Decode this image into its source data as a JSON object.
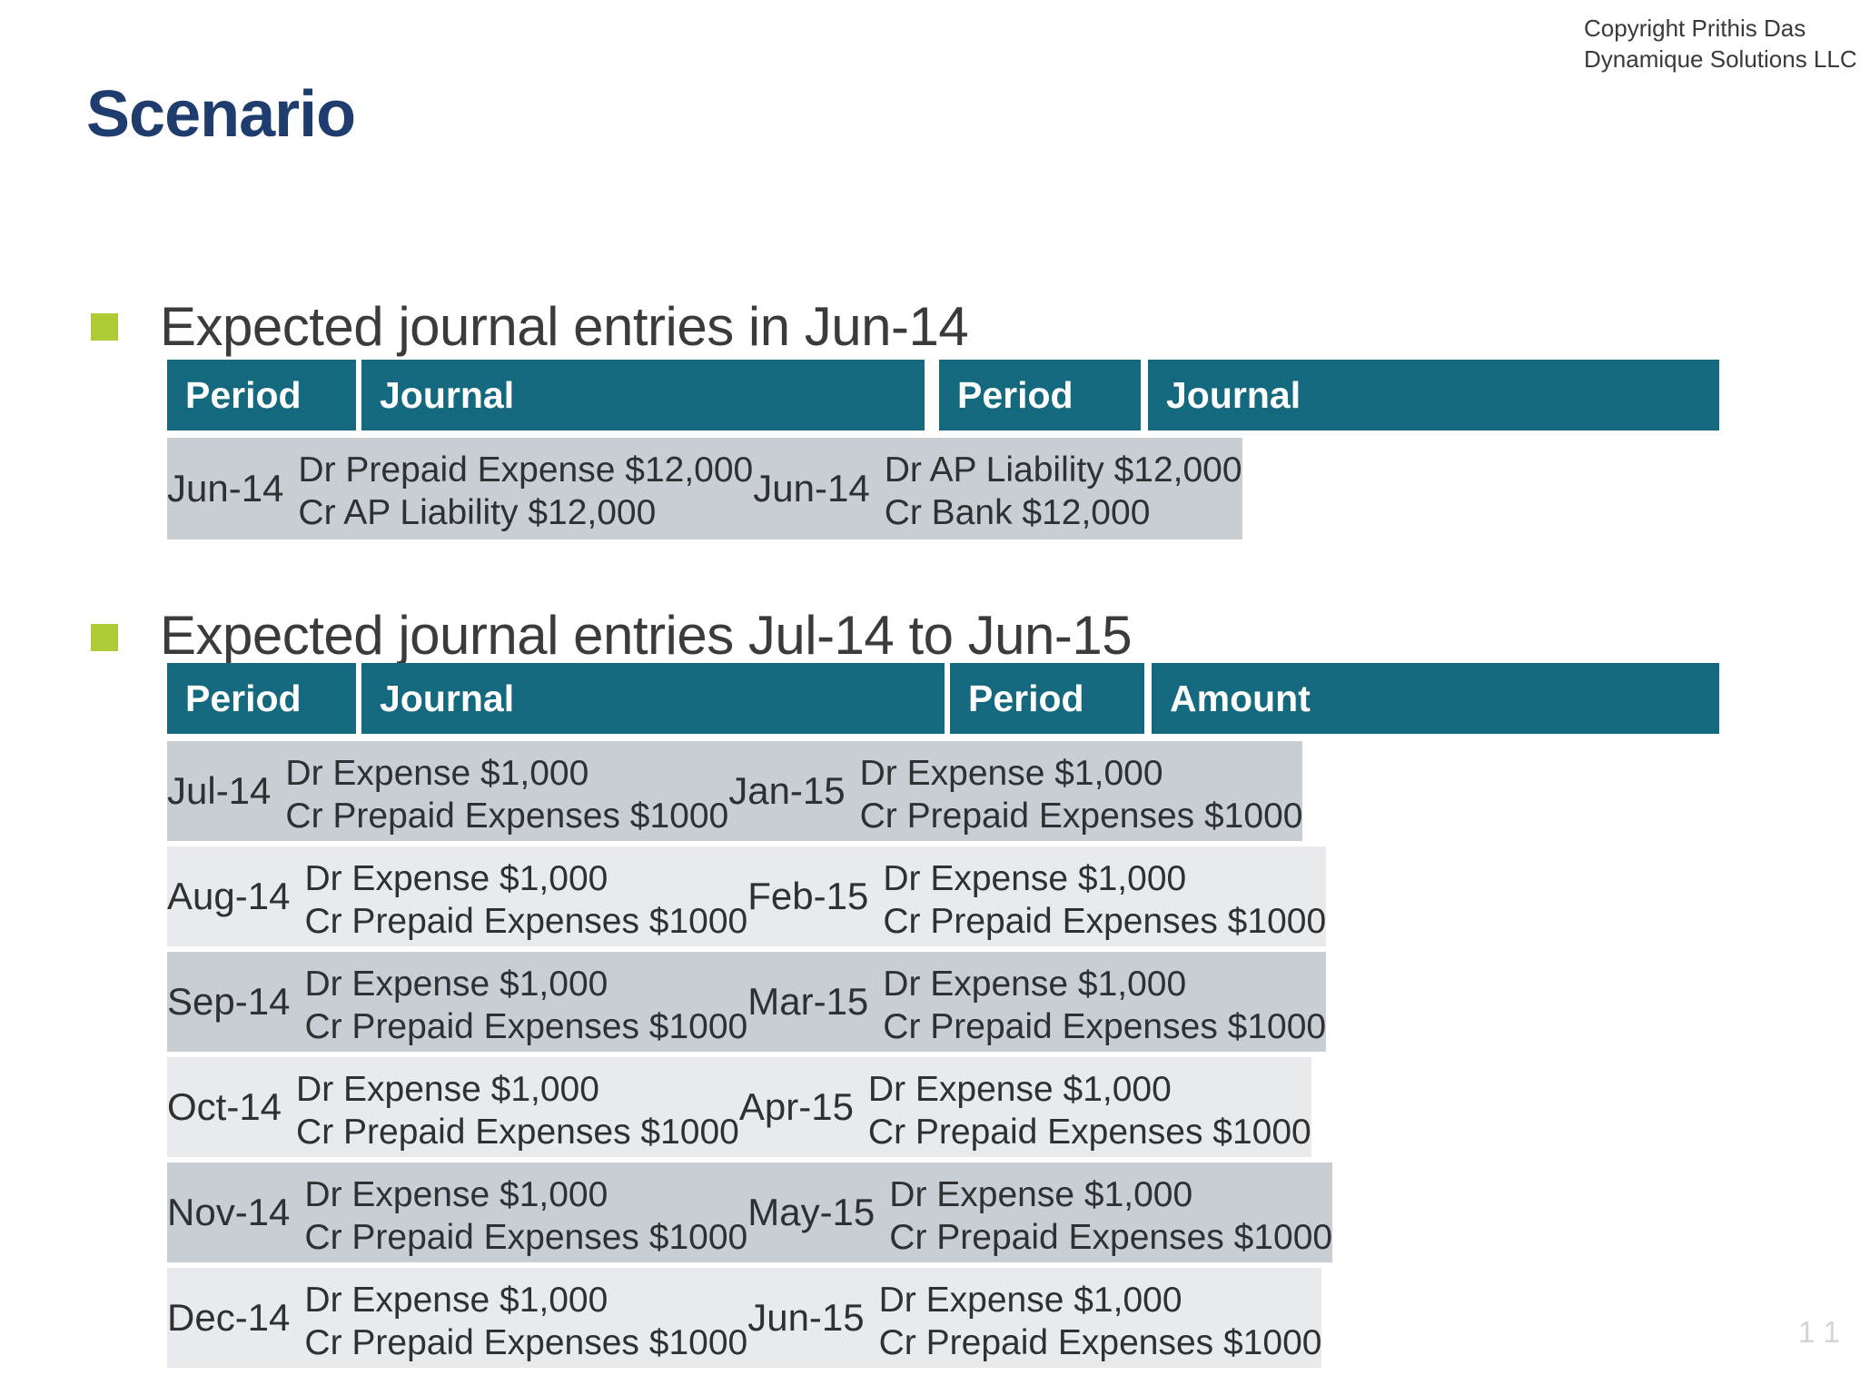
{
  "page": {
    "title": "Scenario",
    "copyright_line1": "Copyright Prithis Das",
    "copyright_line2": "Dynamique Solutions LLC",
    "page_number": "1 1"
  },
  "colors": {
    "title_navy": "#1e3c6e",
    "table_header_teal": "#15697e",
    "row_dark_gray": "#c8ced4",
    "row_light_gray": "#e9eaed",
    "bullet_green": "#adcb36",
    "heading_text": "#3b3b3b",
    "cell_text": "#2e3032",
    "page_number_gray": "#d2d4d8"
  },
  "sections": [
    {
      "heading": "Expected journal entries in Jun-14",
      "table": {
        "headers": [
          "Period",
          "Journal",
          "Period",
          "Journal"
        ],
        "rows": [
          {
            "p1": "Jun-14",
            "j1a": "Dr Prepaid Expense $12,000",
            "j1b": "Cr AP Liability $12,000",
            "p2": "Jun-14",
            "j2a": "Dr AP Liability $12,000",
            "j2b": "Cr Bank $12,000"
          }
        ]
      }
    },
    {
      "heading": "Expected journal entries Jul-14 to Jun-15",
      "table": {
        "headers": [
          "Period",
          "Journal",
          "Period",
          "Amount"
        ],
        "rows": [
          {
            "p1": "Jul-14",
            "j1a": "Dr Expense $1,000",
            "j1b": "Cr Prepaid Expenses $1000",
            "p2": "Jan-15",
            "j2a": "Dr Expense $1,000",
            "j2b": "Cr Prepaid Expenses $1000"
          },
          {
            "p1": "Aug-14",
            "j1a": "Dr Expense $1,000",
            "j1b": "Cr Prepaid Expenses $1000",
            "p2": "Feb-15",
            "j2a": "Dr Expense $1,000",
            "j2b": "Cr Prepaid Expenses $1000"
          },
          {
            "p1": "Sep-14",
            "j1a": "Dr Expense $1,000",
            "j1b": "Cr Prepaid Expenses $1000",
            "p2": "Mar-15",
            "j2a": "Dr Expense $1,000",
            "j2b": "Cr Prepaid Expenses $1000"
          },
          {
            "p1": "Oct-14",
            "j1a": "Dr Expense $1,000",
            "j1b": "Cr Prepaid Expenses $1000",
            "p2": "Apr-15",
            "j2a": "Dr Expense $1,000",
            "j2b": "Cr Prepaid Expenses $1000"
          },
          {
            "p1": "Nov-14",
            "j1a": "Dr Expense $1,000",
            "j1b": "Cr Prepaid Expenses $1000",
            "p2": "May-15",
            "j2a": "Dr Expense $1,000",
            "j2b": "Cr Prepaid Expenses $1000"
          },
          {
            "p1": "Dec-14",
            "j1a": "Dr Expense $1,000",
            "j1b": "Cr Prepaid Expenses $1000",
            "p2": "Jun-15",
            "j2a": "Dr Expense $1,000",
            "j2b": "Cr Prepaid Expenses $1000"
          }
        ]
      }
    }
  ]
}
